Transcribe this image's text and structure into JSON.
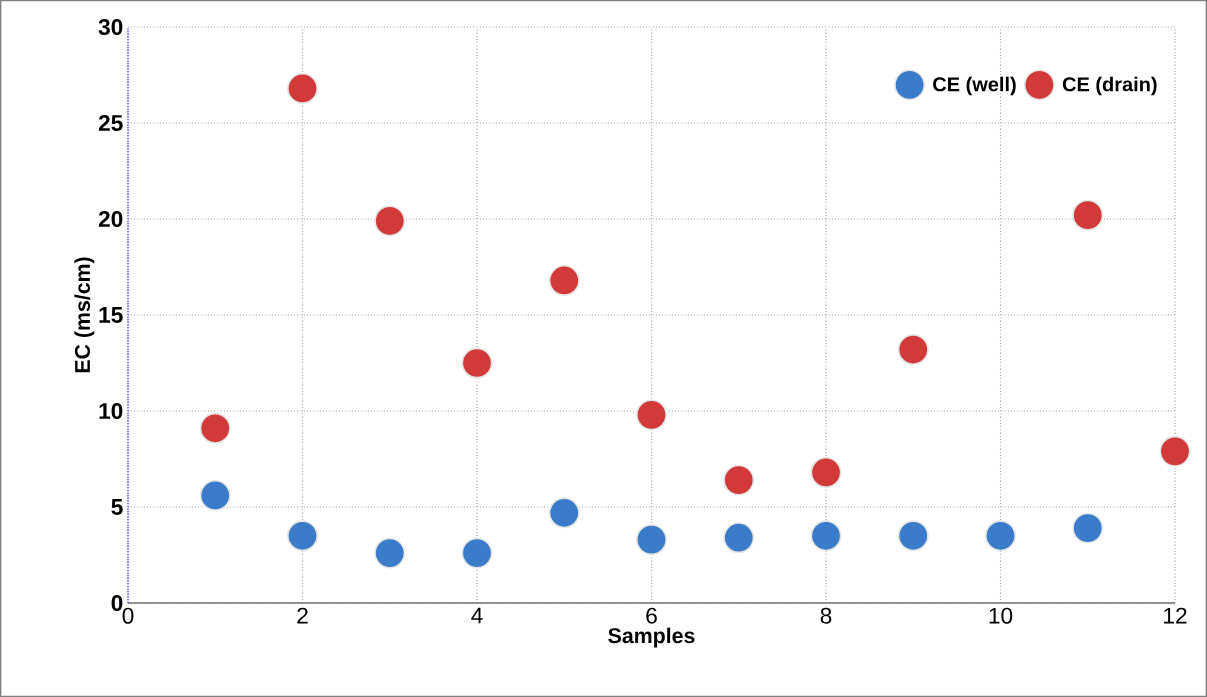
{
  "chart_data": {
    "type": "scatter",
    "xlabel": "Samples",
    "ylabel": "EC (ms/cm)",
    "x": [
      1,
      2,
      3,
      4,
      5,
      6,
      7,
      8,
      9,
      10,
      11,
      12
    ],
    "series": [
      {
        "name": "CE (well)",
        "color": "#3a7cc9",
        "values": [
          5.6,
          3.5,
          2.6,
          2.6,
          4.7,
          3.3,
          3.4,
          3.5,
          3.5,
          3.5,
          3.9,
          null
        ]
      },
      {
        "name": "CE (drain)",
        "color": "#d23a3a",
        "values": [
          9.1,
          26.8,
          19.9,
          12.5,
          16.8,
          9.8,
          6.4,
          6.8,
          13.2,
          null,
          20.2,
          7.9
        ]
      }
    ],
    "xlim": [
      0,
      12
    ],
    "ylim": [
      0,
      30
    ],
    "xticks": [
      0,
      2,
      4,
      6,
      8,
      10,
      12
    ],
    "yticks": [
      0,
      5,
      10,
      15,
      20,
      25,
      30
    ],
    "grid": true,
    "legend": "top right",
    "marker": "circle"
  }
}
